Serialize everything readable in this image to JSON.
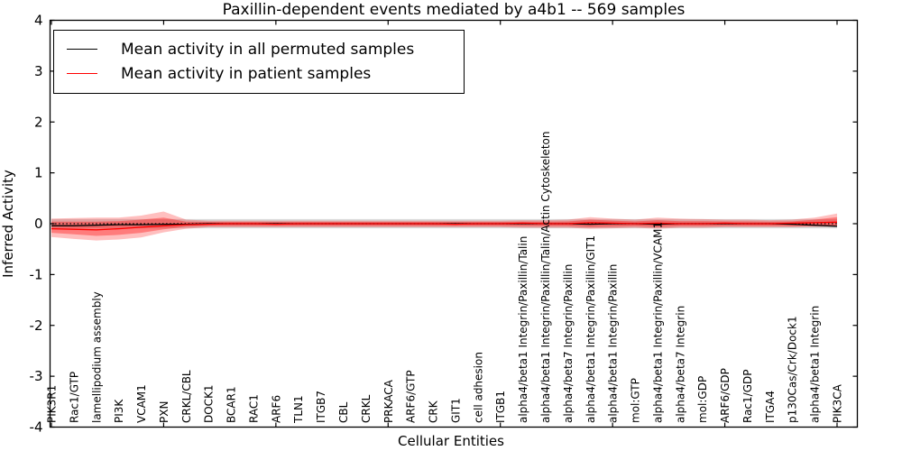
{
  "chart_data": {
    "type": "line",
    "title": "Paxillin-dependent events mediated by a4b1 -- 569 samples",
    "xlabel": "Cellular Entities",
    "ylabel": "Inferred Activity",
    "ylim": [
      -4,
      4
    ],
    "yticks": [
      -4,
      -3,
      -2,
      -1,
      0,
      1,
      2,
      3,
      4
    ],
    "xtick_step": 5,
    "grid": false,
    "legend_position": "upper left",
    "zero_line": {
      "style": "dotted",
      "color": "#000000",
      "value": 0
    },
    "categories": [
      "PIK3R1",
      "Rac1/GTP",
      "lamellipodium assembly",
      "PI3K",
      "VCAM1",
      "PXN",
      "CRKL/CBL",
      "DOCK1",
      "BCAR1",
      "RAC1",
      "ARF6",
      "TLN1",
      "ITGB7",
      "CBL",
      "CRKL",
      "PRKACA",
      "ARF6/GTP",
      "CRK",
      "GIT1",
      "cell adhesion",
      "ITGB1",
      "alpha4/beta1 Integrin/Paxillin/Talin",
      "alpha4/beta1 Integrin/Paxillin/Talin/Actin Cytoskeleton",
      "alpha4/beta7 Integrin/Paxillin",
      "alpha4/beta1 Integrin/Paxillin/GIT1",
      "alpha4/beta1 Integrin/Paxillin",
      "mol:GTP",
      "alpha4/beta1 Integrin/Paxillin/VCAM1",
      "alpha4/beta7 Integrin",
      "mol:GDP",
      "ARF6/GDP",
      "Rac1/GDP",
      "ITGA4",
      "p130Cas/Crk/Dock1",
      "alpha4/beta1 Integrin",
      "PIK3CA"
    ],
    "series": [
      {
        "name": "Mean activity in all permuted samples",
        "color": "#000000",
        "values": [
          -0.04,
          -0.04,
          -0.03,
          -0.02,
          -0.02,
          -0.01,
          -0.01,
          0,
          0,
          0,
          0,
          0,
          0,
          0,
          0,
          0,
          0,
          0,
          0,
          0,
          0,
          0,
          0,
          0,
          -0.01,
          0,
          0,
          -0.01,
          0,
          0,
          0,
          0,
          0,
          -0.01,
          -0.03,
          -0.05
        ]
      },
      {
        "name": "Mean activity in patient samples",
        "color": "#ff0000",
        "values": [
          -0.1,
          -0.11,
          -0.12,
          -0.1,
          -0.07,
          -0.04,
          -0.02,
          -0.01,
          0,
          0,
          -0.01,
          0,
          0,
          0,
          0,
          0,
          0,
          0,
          -0.01,
          0,
          0,
          0.01,
          0,
          0,
          0.02,
          0.01,
          0,
          0.01,
          0,
          0,
          0.01,
          0,
          0,
          0.01,
          0.02,
          0.03
        ]
      }
    ],
    "bands": [
      {
        "name": "permuted-samples-band",
        "color": "#aaaaaa",
        "opacity": 0.45,
        "half_width": 0.09
      },
      {
        "name": "patient-band-outer",
        "color": "#ff0000",
        "opacity": 0.25,
        "top": [
          0.1,
          0.11,
          0.12,
          0.12,
          0.16,
          0.24,
          0.08,
          0.06,
          0.06,
          0.06,
          0.06,
          0.06,
          0.06,
          0.06,
          0.06,
          0.06,
          0.06,
          0.06,
          0.06,
          0.06,
          0.06,
          0.07,
          0.07,
          0.08,
          0.13,
          0.1,
          0.08,
          0.12,
          0.1,
          0.09,
          0.08,
          0.08,
          0.07,
          0.08,
          0.12,
          0.2
        ],
        "bottom": [
          -0.26,
          -0.3,
          -0.33,
          -0.31,
          -0.27,
          -0.17,
          -0.1,
          -0.07,
          -0.07,
          -0.07,
          -0.07,
          -0.07,
          -0.07,
          -0.07,
          -0.07,
          -0.07,
          -0.07,
          -0.07,
          -0.07,
          -0.07,
          -0.07,
          -0.08,
          -0.08,
          -0.08,
          -0.1,
          -0.09,
          -0.08,
          -0.1,
          -0.08,
          -0.08,
          -0.07,
          -0.07,
          -0.07,
          -0.07,
          -0.06,
          -0.06
        ]
      },
      {
        "name": "patient-band-inner",
        "color": "#ff0000",
        "opacity": 0.35,
        "top": [
          0.04,
          0.04,
          0.04,
          0.05,
          0.08,
          0.12,
          0.04,
          0.035,
          0.035,
          0.035,
          0.035,
          0.035,
          0.035,
          0.035,
          0.035,
          0.035,
          0.035,
          0.035,
          0.035,
          0.035,
          0.035,
          0.04,
          0.04,
          0.045,
          0.08,
          0.06,
          0.045,
          0.07,
          0.05,
          0.05,
          0.045,
          0.045,
          0.04,
          0.045,
          0.08,
          0.13
        ],
        "bottom": [
          -0.18,
          -0.21,
          -0.24,
          -0.22,
          -0.18,
          -0.11,
          -0.06,
          -0.045,
          -0.045,
          -0.045,
          -0.045,
          -0.045,
          -0.045,
          -0.045,
          -0.045,
          -0.045,
          -0.045,
          -0.045,
          -0.045,
          -0.045,
          -0.045,
          -0.05,
          -0.05,
          -0.05,
          -0.07,
          -0.06,
          -0.05,
          -0.07,
          -0.05,
          -0.05,
          -0.045,
          -0.045,
          -0.045,
          -0.05,
          -0.05,
          -0.04
        ]
      }
    ]
  },
  "legend": {
    "entries": [
      {
        "label": "Mean activity in all permuted samples",
        "color": "#000000"
      },
      {
        "label": "Mean activity in patient samples",
        "color": "#ff0000"
      }
    ]
  }
}
